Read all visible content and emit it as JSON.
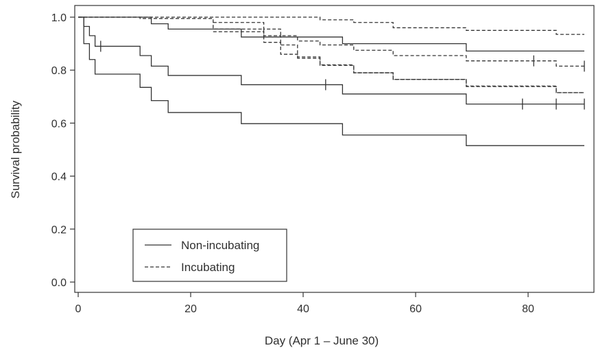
{
  "chart_data": {
    "type": "line",
    "subtype": "kaplan-meier step curves with confidence bands",
    "xlabel": "Day (Apr 1 – June 30)",
    "ylabel": "Survival probability",
    "xlim": [
      0,
      92
    ],
    "ylim": [
      0,
      1.03
    ],
    "x_ticks": [
      0,
      20,
      40,
      60,
      80
    ],
    "y_ticks": [
      0.0,
      0.2,
      0.4,
      0.6,
      0.8,
      1.0
    ],
    "x_tick_labels": [
      "0",
      "20",
      "40",
      "60",
      "80"
    ],
    "y_tick_labels": [
      "0.0",
      "0.2",
      "0.4",
      "0.6",
      "0.8",
      "1.0"
    ],
    "grid": false,
    "legend_position": "bottom-left",
    "series": [
      {
        "name": "Non-incubating",
        "line_style": "solid",
        "color": "#333333",
        "estimate": {
          "steps": [
            [
              0,
              1.0
            ],
            [
              1,
              0.965
            ],
            [
              2,
              0.93
            ],
            [
              3,
              0.89
            ],
            [
              11,
              0.855
            ],
            [
              13,
              0.815
            ],
            [
              16,
              0.78
            ],
            [
              29,
              0.745
            ],
            [
              47,
              0.71
            ],
            [
              69,
              0.672
            ],
            [
              90,
              0.672
            ]
          ],
          "censored_x": [
            4,
            44,
            79,
            85,
            90
          ]
        },
        "lower_ci": {
          "steps": [
            [
              0,
              1.0
            ],
            [
              1,
              0.9
            ],
            [
              2,
              0.84
            ],
            [
              3,
              0.785
            ],
            [
              11,
              0.735
            ],
            [
              13,
              0.685
            ],
            [
              16,
              0.64
            ],
            [
              29,
              0.598
            ],
            [
              47,
              0.555
            ],
            [
              69,
              0.515
            ],
            [
              90,
              0.515
            ]
          ]
        },
        "upper_ci": {
          "steps": [
            [
              0,
              1.0
            ],
            [
              13,
              0.975
            ],
            [
              16,
              0.955
            ],
            [
              29,
              0.925
            ],
            [
              47,
              0.9
            ],
            [
              69,
              0.872
            ],
            [
              90,
              0.872
            ]
          ]
        }
      },
      {
        "name": "Incubating",
        "line_style": "dashed",
        "color": "#333333",
        "estimate": {
          "steps": [
            [
              0,
              1.0
            ],
            [
              11,
              0.995
            ],
            [
              24,
              0.955
            ],
            [
              33,
              0.93
            ],
            [
              36,
              0.895
            ],
            [
              39,
              0.85
            ],
            [
              43,
              0.82
            ],
            [
              49,
              0.79
            ],
            [
              56,
              0.765
            ],
            [
              69,
              0.74
            ],
            [
              85,
              0.715
            ],
            [
              90,
              0.715
            ]
          ],
          "censored_x": []
        },
        "lower_ci": {
          "steps": [
            [
              24,
              0.945
            ],
            [
              33,
              0.905
            ],
            [
              36,
              0.86
            ],
            [
              39,
              0.845
            ],
            [
              43,
              0.818
            ],
            [
              49,
              0.79
            ],
            [
              56,
              0.765
            ],
            [
              69,
              0.738
            ],
            [
              85,
              0.715
            ],
            [
              90,
              0.715
            ]
          ]
        },
        "upper_ci": {
          "steps": [
            [
              0,
              1.0
            ],
            [
              11,
              1.0
            ],
            [
              43,
              0.99
            ],
            [
              49,
              0.98
            ],
            [
              56,
              0.96
            ],
            [
              69,
              0.95
            ],
            [
              85,
              0.935
            ],
            [
              90,
              0.935
            ]
          ]
        },
        "middle": {
          "steps": [
            [
              24,
              0.98
            ],
            [
              33,
              0.955
            ],
            [
              36,
              0.93
            ],
            [
              39,
              0.91
            ],
            [
              43,
              0.895
            ],
            [
              49,
              0.875
            ],
            [
              56,
              0.855
            ],
            [
              69,
              0.835
            ],
            [
              85,
              0.815
            ],
            [
              90,
              0.815
            ]
          ],
          "censored_x": [
            81,
            90
          ]
        }
      }
    ]
  },
  "legend": {
    "items": [
      {
        "label": "Non-incubating",
        "style": "solid"
      },
      {
        "label": "Incubating",
        "style": "dashed"
      }
    ]
  }
}
